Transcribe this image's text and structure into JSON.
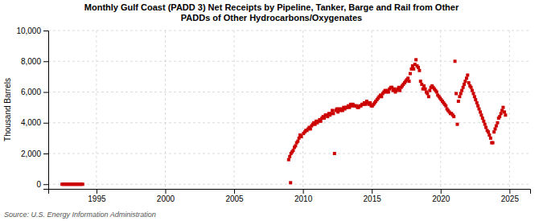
{
  "chart_data": {
    "type": "scatter",
    "title": "Monthly Gulf Coast (PADD 3) Net Receipts by Pipeline, Tanker, Barge and Rail from Other\nPADDs of Other Hydrocarbons/Oxygenates",
    "y_label": "Thousand Barrels",
    "annotations": [
      "Source: U.S. Energy Information Administration"
    ],
    "color": "#cc0000",
    "marker": "square",
    "grid": true,
    "xlim": [
      1991.5,
      2026.5
    ],
    "ylim": [
      -300,
      10000
    ],
    "xticks": [
      1995,
      2000,
      2005,
      2010,
      2015,
      2020,
      2025
    ],
    "yticks": [
      0,
      {
        "value": 2000,
        "label": "2,000"
      },
      {
        "value": 4000,
        "label": "4,000"
      },
      {
        "value": 6000,
        "label": "6,000"
      },
      {
        "value": 8000,
        "label": "8,000"
      },
      {
        "value": 10000,
        "label": "10,000"
      }
    ],
    "x": [
      1992.5,
      1992.6,
      1992.7,
      1992.8,
      1992.9,
      1993.0,
      1993.1,
      1993.2,
      1993.3,
      1993.4,
      1993.5,
      1993.6,
      1993.7,
      1993.8,
      1993.9,
      1994.0,
      2009.1,
      2008.96,
      2009.04,
      2009.13,
      2009.21,
      2009.29,
      2009.38,
      2009.46,
      2009.54,
      2009.63,
      2009.71,
      2009.79,
      2009.88,
      2010.04,
      2010.13,
      2010.21,
      2010.29,
      2010.38,
      2010.46,
      2010.54,
      2010.63,
      2010.71,
      2010.79,
      2010.88,
      2010.96,
      2011.04,
      2011.13,
      2011.21,
      2011.29,
      2011.38,
      2011.46,
      2011.54,
      2011.63,
      2011.71,
      2011.79,
      2011.88,
      2011.96,
      2012.04,
      2012.13,
      2012.21,
      2012.29,
      2012.38,
      2012.46,
      2012.54,
      2012.63,
      2012.71,
      2012.79,
      2012.88,
      2012.96,
      2013.04,
      2013.13,
      2013.21,
      2013.29,
      2013.38,
      2013.46,
      2013.54,
      2013.63,
      2013.71,
      2013.79,
      2013.88,
      2013.96,
      2014.04,
      2014.13,
      2014.21,
      2014.29,
      2014.38,
      2014.46,
      2014.54,
      2014.63,
      2014.71,
      2014.79,
      2014.88,
      2014.96,
      2015.04,
      2015.13,
      2015.21,
      2015.29,
      2015.38,
      2015.46,
      2015.54,
      2015.63,
      2015.71,
      2015.79,
      2015.88,
      2015.96,
      2016.04,
      2016.13,
      2016.21,
      2016.29,
      2016.38,
      2016.46,
      2016.54,
      2016.63,
      2016.71,
      2016.79,
      2016.88,
      2016.96,
      2017.04,
      2017.13,
      2017.21,
      2017.29,
      2017.38,
      2017.46,
      2017.54,
      2017.63,
      2017.71,
      2017.79,
      2017.88,
      2017.96,
      2018.04,
      2018.13,
      2018.21,
      2018.29,
      2018.38,
      2018.46,
      2018.54,
      2018.63,
      2018.71,
      2018.79,
      2018.88,
      2018.96,
      2019.04,
      2019.13,
      2019.21,
      2019.29,
      2019.38,
      2019.46,
      2019.54,
      2019.63,
      2019.71,
      2019.79,
      2019.88,
      2019.96,
      2020.04,
      2020.13,
      2020.21,
      2020.29,
      2020.38,
      2020.46,
      2020.54,
      2020.63,
      2020.71,
      2020.79,
      2020.88,
      2020.96,
      2021.04,
      2021.13,
      2021.21,
      2021.29,
      2021.38,
      2021.46,
      2021.54,
      2021.63,
      2021.71,
      2021.79,
      2021.88,
      2021.96,
      2022.04,
      2022.13,
      2022.21,
      2022.29,
      2022.38,
      2022.46,
      2022.54,
      2022.63,
      2022.71,
      2022.79,
      2022.88,
      2022.96,
      2023.04,
      2023.13,
      2023.21,
      2023.29,
      2023.38,
      2023.46,
      2023.54,
      2023.63,
      2023.71,
      2023.79,
      2023.88,
      2023.96,
      2024.04,
      2024.13,
      2024.21,
      2024.29,
      2024.38,
      2024.46,
      2024.54,
      2024.63,
      2024.71
    ],
    "values": [
      0,
      0,
      0,
      0,
      0,
      0,
      0,
      0,
      0,
      0,
      0,
      0,
      0,
      0,
      0,
      0,
      100,
      1600,
      1800,
      2000,
      2100,
      2200,
      2400,
      2500,
      2700,
      2800,
      3000,
      3200,
      3100,
      3300,
      3400,
      3500,
      3500,
      3600,
      3700,
      3600,
      3800,
      3900,
      4000,
      3900,
      4100,
      4000,
      4100,
      4200,
      4100,
      4300,
      4400,
      4300,
      4500,
      4500,
      4400,
      4600,
      4500,
      4600,
      4800,
      4600,
      2000,
      4800,
      4900,
      4700,
      4900,
      4800,
      4900,
      4800,
      5000,
      4900,
      5000,
      5000,
      5100,
      5000,
      5200,
      5100,
      5200,
      5100,
      5100,
      5100,
      5000,
      5000,
      5100,
      5100,
      5200,
      5200,
      5300,
      5200,
      5400,
      5300,
      5200,
      5300,
      5100,
      5100,
      5200,
      5300,
      5400,
      5500,
      5600,
      5700,
      5800,
      5700,
      5900,
      6000,
      6100,
      6000,
      6100,
      6000,
      6200,
      6300,
      6300,
      6100,
      6200,
      6000,
      6100,
      6200,
      6300,
      6100,
      6300,
      6400,
      6500,
      6600,
      6700,
      6800,
      6900,
      6700,
      7200,
      7500,
      7700,
      7500,
      7800,
      8100,
      7700,
      7600,
      7400,
      6700,
      6500,
      6200,
      6400,
      6200,
      6000,
      5900,
      5700,
      6100,
      6300,
      6400,
      6300,
      6200,
      6100,
      6000,
      5800,
      5700,
      5600,
      5500,
      5400,
      5300,
      5200,
      5100,
      4900,
      4800,
      4700,
      4600,
      4600,
      4500,
      4400,
      8000,
      5900,
      3900,
      5400,
      5700,
      5900,
      6100,
      6300,
      6500,
      6700,
      6900,
      7100,
      6600,
      6400,
      6300,
      6100,
      5900,
      5700,
      5500,
      5300,
      5100,
      4900,
      4700,
      4500,
      4300,
      4100,
      3900,
      3700,
      3500,
      3400,
      3200,
      3000,
      2700,
      2700,
      3400,
      3600,
      3800,
      4000,
      4300,
      4400,
      4600,
      4800,
      5000,
      4700,
      4500
    ]
  }
}
